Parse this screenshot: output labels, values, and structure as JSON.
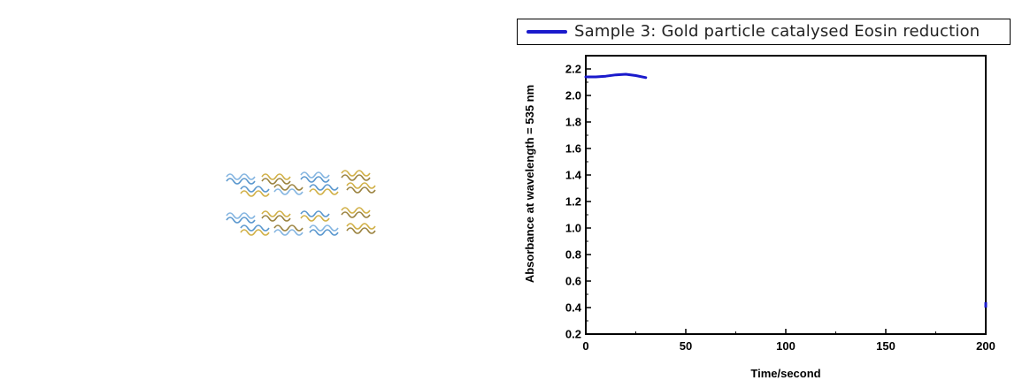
{
  "chart_data": {
    "type": "line",
    "legend": {
      "placement": "top",
      "entries": [
        "Sample 3: Gold particle catalysed Eosin reduction"
      ]
    },
    "xlabel": "Time/second",
    "ylabel": "Absorbance at wavelength = 535 nm",
    "xlim": [
      0,
      200
    ],
    "ylim": [
      0.2,
      2.3
    ],
    "x_ticks": [
      "0",
      "50",
      "100",
      "150",
      "200"
    ],
    "y_ticks": [
      "0.2",
      "0.4",
      "0.6",
      "0.8",
      "1.0",
      "1.2",
      "1.4",
      "1.6",
      "1.8",
      "2.0",
      "2.2"
    ],
    "grid": false,
    "series": [
      {
        "name": "Sample 3: Gold particle catalysed Eosin reduction",
        "color": "#1a1acc",
        "x": [
          0,
          5,
          10,
          15,
          20,
          25,
          30
        ],
        "y": [
          2.14,
          2.14,
          2.145,
          2.155,
          2.16,
          2.15,
          2.135
        ]
      }
    ],
    "extra_points": [
      {
        "x": 200,
        "y": 0.42,
        "color": "#1a1acc"
      }
    ]
  },
  "decoration": {
    "name": "wavy-lines-graphic",
    "colors": [
      "#6fa8dc",
      "#3d85c6",
      "#c9a227",
      "#8a6d1f"
    ]
  }
}
